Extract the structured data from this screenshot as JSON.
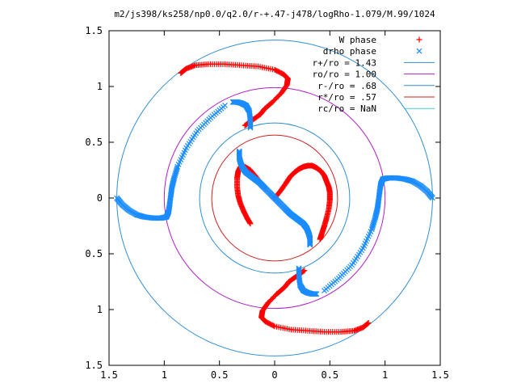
{
  "chart_data": {
    "type": "scatter",
    "title": "m2/js398/ks258/np0.0/q2.0/r-+.47-j478/logRho-1.079/M.99/1024",
    "xlim": [
      -1.5,
      1.5
    ],
    "ylim": [
      -1.5,
      1.5
    ],
    "x_ticks": [
      -1.5,
      -1,
      -0.5,
      0,
      0.5,
      1,
      1.5
    ],
    "x_tick_labels": [
      "1.5",
      "1",
      "0.5",
      "0",
      "0.5",
      "1",
      "1.5"
    ],
    "y_ticks": [
      1.5,
      1,
      0.5,
      0,
      -0.5,
      -1,
      -1.5
    ],
    "y_tick_labels": [
      "1.5",
      "1",
      "0.5",
      "0",
      "0.5",
      "1",
      "1.5"
    ],
    "grid": false,
    "legend_position": "top-right",
    "colors": {
      "w_phase": "#ff0000",
      "drho_phase": "#1a8cff",
      "circle_outer": "#2f8fd1",
      "circle_ro": "#b020c8",
      "circle_rminus": "#2f8fd1",
      "circle_rstar": "#d02020",
      "circle_rc": "#3fd0d0"
    },
    "series": [
      {
        "name": "W phase",
        "marker": "+",
        "color": "#ff0000",
        "arms": [
          {
            "x": [
              0.0,
              0.05,
              0.1,
              0.14,
              0.18,
              0.22,
              0.26,
              0.3,
              0.34,
              0.38,
              0.42,
              0.45,
              0.47,
              0.49,
              0.5,
              0.5,
              0.49,
              0.47,
              0.45,
              0.43,
              0.41
            ],
            "y": [
              0.0,
              0.06,
              0.13,
              0.19,
              0.23,
              0.26,
              0.28,
              0.29,
              0.29,
              0.27,
              0.24,
              0.2,
              0.15,
              0.1,
              0.05,
              -0.02,
              -0.1,
              -0.18,
              -0.25,
              -0.31,
              -0.37
            ]
          },
          {
            "x": [
              -0.08,
              -0.16,
              -0.22,
              -0.27,
              -0.31,
              -0.33,
              -0.34,
              -0.34,
              -0.33,
              -0.31,
              -0.28,
              -0.25,
              -0.22
            ],
            "y": [
              0.08,
              0.18,
              0.25,
              0.28,
              0.28,
              0.24,
              0.18,
              0.1,
              0.02,
              -0.05,
              -0.12,
              -0.18,
              -0.23
            ]
          },
          {
            "x": [
              -0.85,
              -0.8,
              -0.72,
              -0.6,
              -0.45,
              -0.3,
              -0.15,
              0.0,
              0.08,
              0.12,
              0.11,
              0.06,
              -0.02,
              -0.09,
              -0.13,
              -0.2,
              -0.27
            ],
            "y": [
              1.12,
              1.16,
              1.19,
              1.2,
              1.2,
              1.19,
              1.18,
              1.15,
              1.11,
              1.07,
              1.01,
              0.94,
              0.86,
              0.8,
              0.75,
              0.7,
              0.65
            ]
          },
          {
            "x": [
              0.85,
              0.8,
              0.72,
              0.6,
              0.45,
              0.3,
              0.15,
              0.0,
              -0.08,
              -0.12,
              -0.11,
              -0.06,
              0.02,
              0.09,
              0.13,
              0.2,
              0.27
            ],
            "y": [
              -1.12,
              -1.16,
              -1.19,
              -1.2,
              -1.2,
              -1.19,
              -1.18,
              -1.15,
              -1.11,
              -1.07,
              -1.01,
              -0.94,
              -0.86,
              -0.8,
              -0.75,
              -0.7,
              -0.65
            ]
          }
        ]
      },
      {
        "name": "drho phase",
        "marker": "x",
        "color": "#1a8cff",
        "arms": [
          {
            "x": [
              0.0,
              -0.05,
              -0.1,
              -0.14,
              -0.18,
              -0.22,
              -0.26,
              -0.29,
              -0.31,
              -0.32,
              -0.32,
              -0.32
            ],
            "y": [
              0.0,
              0.05,
              0.1,
              0.14,
              0.17,
              0.2,
              0.23,
              0.27,
              0.32,
              0.36,
              0.4,
              0.42
            ]
          },
          {
            "x": [
              0.0,
              0.05,
              0.1,
              0.14,
              0.18,
              0.22,
              0.26,
              0.29,
              0.31,
              0.32,
              0.32,
              0.32
            ],
            "y": [
              0.0,
              -0.05,
              -0.1,
              -0.14,
              -0.17,
              -0.2,
              -0.23,
              -0.27,
              -0.32,
              -0.36,
              -0.4,
              -0.42
            ]
          },
          {
            "x": [
              1.43,
              1.38,
              1.32,
              1.25,
              1.18,
              1.1,
              1.03,
              0.98,
              0.96,
              0.95,
              0.94,
              0.93,
              0.91,
              0.88,
              0.8,
              0.7,
              0.58,
              0.45
            ],
            "y": [
              0.0,
              0.06,
              0.11,
              0.15,
              0.17,
              0.18,
              0.18,
              0.17,
              0.12,
              0.05,
              -0.03,
              -0.1,
              -0.18,
              -0.28,
              -0.45,
              -0.6,
              -0.72,
              -0.83
            ]
          },
          {
            "x": [
              -1.43,
              -1.38,
              -1.32,
              -1.25,
              -1.18,
              -1.1,
              -1.03,
              -0.98,
              -0.96,
              -0.95,
              -0.94,
              -0.93,
              -0.91,
              -0.88,
              -0.8,
              -0.7,
              -0.58,
              -0.45
            ],
            "y": [
              0.0,
              -0.06,
              -0.11,
              -0.15,
              -0.17,
              -0.18,
              -0.18,
              -0.17,
              -0.12,
              -0.05,
              0.03,
              0.1,
              0.18,
              0.28,
              0.45,
              0.6,
              0.72,
              0.83
            ]
          },
          {
            "x": [
              -0.22,
              -0.22,
              -0.23,
              -0.26,
              -0.3,
              -0.34,
              -0.38
            ],
            "y": [
              0.63,
              0.7,
              0.78,
              0.83,
              0.85,
              0.86,
              0.86
            ]
          },
          {
            "x": [
              0.22,
              0.22,
              0.23,
              0.26,
              0.3,
              0.34,
              0.38
            ],
            "y": [
              -0.63,
              -0.7,
              -0.78,
              -0.83,
              -0.85,
              -0.86,
              -0.86
            ]
          }
        ]
      }
    ],
    "circles": [
      {
        "name": "r+/ro = 1.43",
        "r": 1.43,
        "color": "#2f8fd1"
      },
      {
        "name": "ro/ro = 1.00",
        "r": 1.0,
        "color": "#b020c8"
      },
      {
        "name": "r-/ro = .68",
        "r": 0.68,
        "color": "#2f8fd1"
      },
      {
        "name": "r*/ro = .57",
        "r": 0.57,
        "color": "#d02020"
      },
      {
        "name": "rc/ro = NaN",
        "r": null,
        "color": "#3fd0d0"
      }
    ]
  }
}
